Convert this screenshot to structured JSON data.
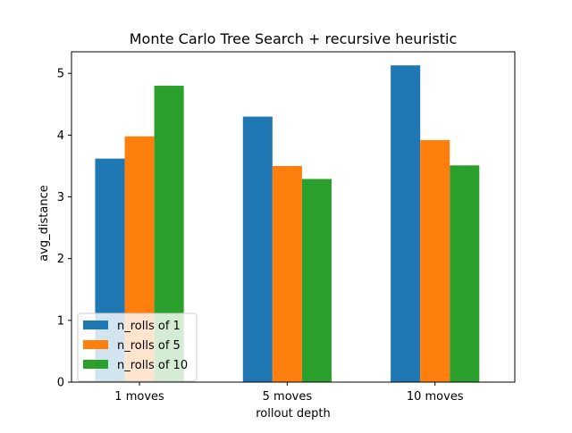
{
  "chart_data": {
    "type": "bar",
    "title": "Monte Carlo Tree Search + recursive heuristic",
    "xlabel": "rollout depth",
    "ylabel": "avg_distance",
    "categories": [
      "1 moves",
      "5 moves",
      "10 moves"
    ],
    "series": [
      {
        "name": "n_rolls of 1",
        "color": "#1f77b4",
        "values": [
          3.62,
          4.3,
          5.13
        ]
      },
      {
        "name": "n_rolls of 5",
        "color": "#ff7f0e",
        "values": [
          3.98,
          3.5,
          3.92
        ]
      },
      {
        "name": "n_rolls of 10",
        "color": "#2ca02c",
        "values": [
          4.8,
          3.29,
          3.51
        ]
      }
    ],
    "ylim": [
      0,
      5.35
    ],
    "yticks": [
      0,
      1,
      2,
      3,
      4,
      5
    ],
    "grid": false,
    "legend_position": "lower-left"
  }
}
